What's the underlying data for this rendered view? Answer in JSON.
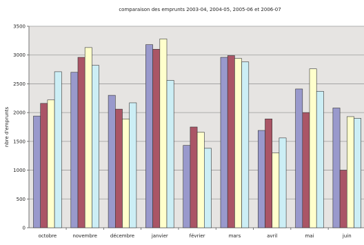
{
  "chart_data": {
    "type": "bar",
    "title": "comparaison des emprunts 2003-04, 2004-05, 2005-06 et 2006-07",
    "xlabel": "",
    "ylabel": "nbre d'emprunts",
    "ylim": [
      0,
      3500
    ],
    "yticks": [
      0,
      500,
      1000,
      1500,
      2000,
      2500,
      3000,
      3500
    ],
    "grid": true,
    "legend": "none",
    "categories": [
      "octobre",
      "novembre",
      "décembre",
      "janvier",
      "février",
      "mars",
      "avril",
      "mai",
      "juin"
    ],
    "series": [
      {
        "color": "#9999CC",
        "values": [
          1940,
          2700,
          2300,
          3180,
          1430,
          2960,
          1690,
          2410,
          2080
        ]
      },
      {
        "color": "#AA5566",
        "values": [
          2160,
          2960,
          2060,
          3100,
          1750,
          2990,
          1890,
          2000,
          1000
        ]
      },
      {
        "color": "#FFFFCC",
        "values": [
          2220,
          3130,
          1890,
          3280,
          1660,
          2940,
          1300,
          2760,
          1930
        ]
      },
      {
        "color": "#CCEEF5",
        "values": [
          2710,
          2820,
          2170,
          2560,
          1380,
          2880,
          1560,
          2370,
          1900
        ]
      }
    ]
  }
}
